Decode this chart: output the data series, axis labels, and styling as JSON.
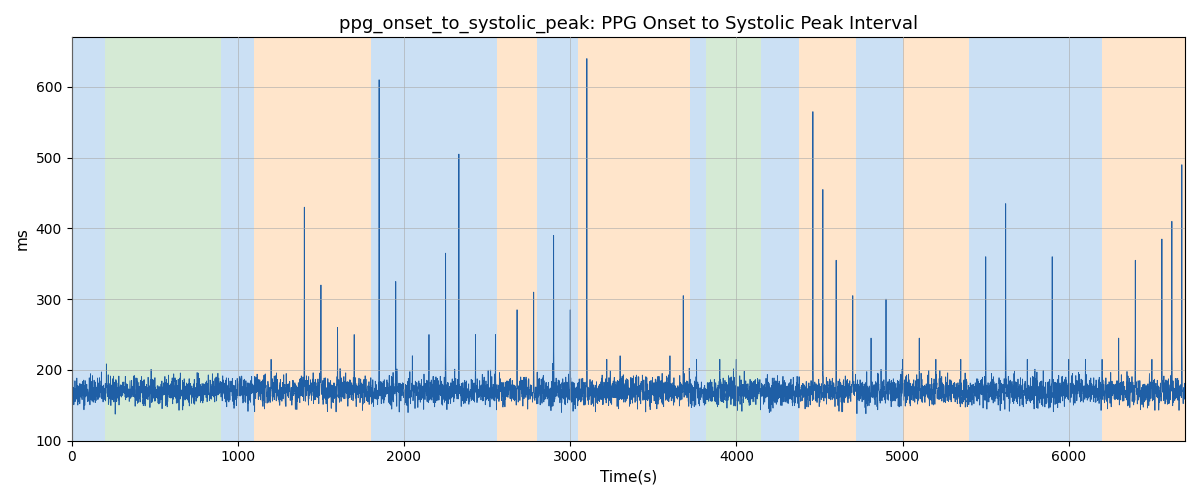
{
  "title": "ppg_onset_to_systolic_peak: PPG Onset to Systolic Peak Interval",
  "xlabel": "Time(s)",
  "ylabel": "ms",
  "xlim": [
    0,
    6700
  ],
  "ylim": [
    100,
    670
  ],
  "yticks": [
    100,
    200,
    300,
    400,
    500,
    600
  ],
  "bg_regions": [
    {
      "xmin": 0,
      "xmax": 200,
      "color": "#5599dd"
    },
    {
      "xmin": 200,
      "xmax": 900,
      "color": "#77bb77"
    },
    {
      "xmin": 900,
      "xmax": 1100,
      "color": "#5599dd"
    },
    {
      "xmin": 1100,
      "xmax": 1800,
      "color": "#ffaa55"
    },
    {
      "xmin": 1800,
      "xmax": 2560,
      "color": "#5599dd"
    },
    {
      "xmin": 2560,
      "xmax": 2800,
      "color": "#ffaa55"
    },
    {
      "xmin": 2800,
      "xmax": 3050,
      "color": "#5599dd"
    },
    {
      "xmin": 3050,
      "xmax": 3720,
      "color": "#ffaa55"
    },
    {
      "xmin": 3720,
      "xmax": 3820,
      "color": "#5599dd"
    },
    {
      "xmin": 3820,
      "xmax": 4150,
      "color": "#77bb77"
    },
    {
      "xmin": 4150,
      "xmax": 4380,
      "color": "#5599dd"
    },
    {
      "xmin": 4380,
      "xmax": 4720,
      "color": "#ffaa55"
    },
    {
      "xmin": 4720,
      "xmax": 5000,
      "color": "#5599dd"
    },
    {
      "xmin": 5000,
      "xmax": 5400,
      "color": "#ffaa55"
    },
    {
      "xmin": 5400,
      "xmax": 6200,
      "color": "#5599dd"
    },
    {
      "xmin": 6200,
      "xmax": 6700,
      "color": "#ffaa55"
    }
  ],
  "bg_alpha": 0.3,
  "signal_color": "#1f5fa6",
  "signal_linewidth": 0.6,
  "baseline_mean": 170,
  "baseline_std": 10,
  "spike_positions": [
    1200,
    1400,
    1500,
    1600,
    1700,
    1850,
    1950,
    2050,
    2150,
    2250,
    2330,
    2430,
    2550,
    2680,
    2780,
    2900,
    3000,
    3100,
    3220,
    3300,
    3600,
    3680,
    3760,
    3900,
    4000,
    4460,
    4520,
    4600,
    4700,
    4810,
    4900,
    5000,
    5100,
    5200,
    5350,
    5500,
    5620,
    5750,
    5900,
    6000,
    6100,
    6200,
    6300,
    6400,
    6500,
    6560,
    6620,
    6680
  ],
  "spike_heights": [
    215,
    430,
    320,
    260,
    250,
    610,
    325,
    220,
    250,
    365,
    505,
    250,
    250,
    285,
    310,
    390,
    285,
    640,
    215,
    220,
    220,
    305,
    215,
    215,
    215,
    565,
    455,
    355,
    305,
    245,
    300,
    215,
    245,
    215,
    215,
    360,
    435,
    215,
    360,
    215,
    215,
    215,
    245,
    355,
    215,
    385,
    410,
    490
  ],
  "seed": 42,
  "n_points": 6700,
  "figsize": [
    12,
    5
  ],
  "dpi": 100,
  "title_fontsize": 13,
  "grid_color": "#aaaaaa",
  "grid_alpha": 0.6,
  "grid_linewidth": 0.7
}
